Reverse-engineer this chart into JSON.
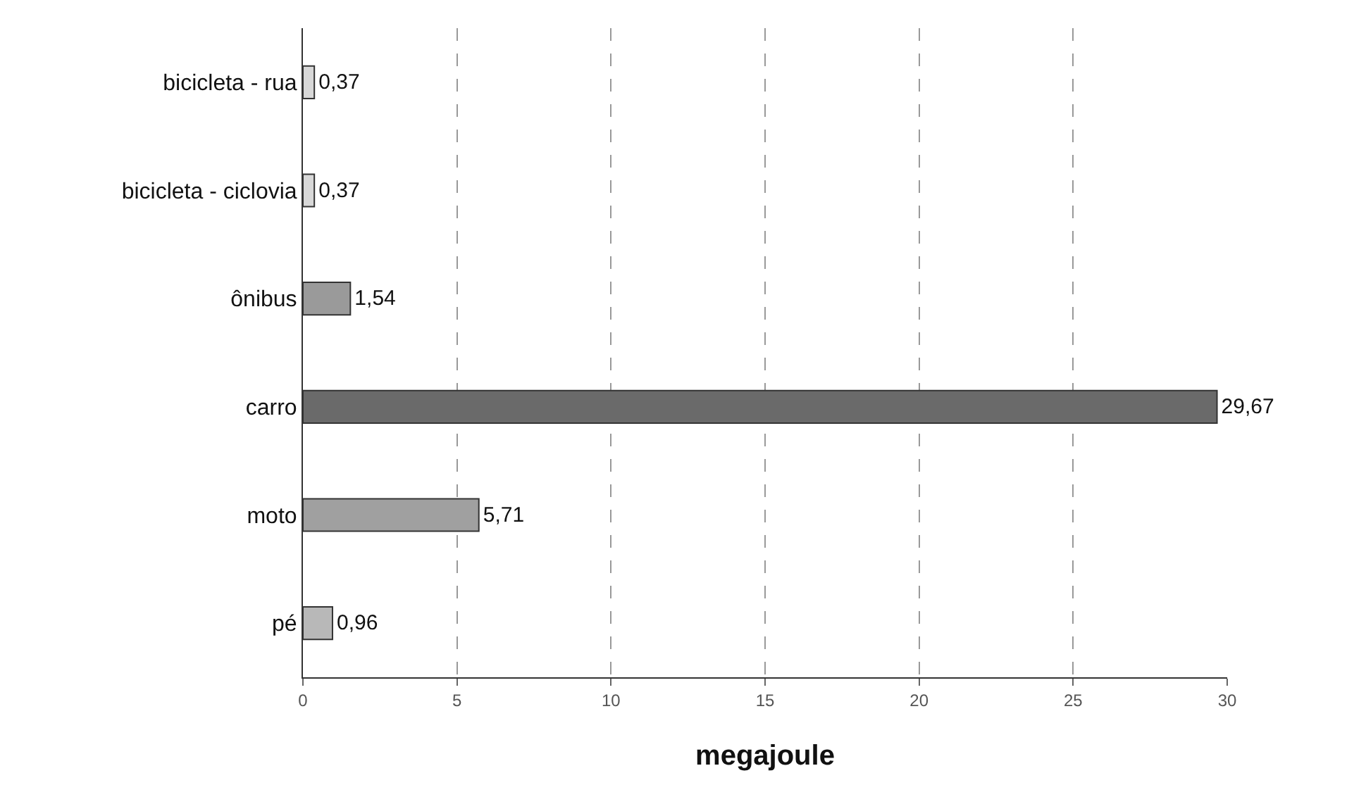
{
  "chart_data": {
    "type": "bar",
    "orientation": "horizontal",
    "categories": [
      "bicicleta - rua",
      "bicicleta - ciclovia",
      "ônibus",
      "carro",
      "moto",
      "pé"
    ],
    "values": [
      0.37,
      0.37,
      1.54,
      29.67,
      5.71,
      0.96
    ],
    "value_labels": [
      "0,37",
      "0,37",
      "1,54",
      "29,67",
      "5,71",
      "0,96"
    ],
    "colors": [
      "#d8d8d8",
      "#d8d8d8",
      "#9a9a9a",
      "#6a6a6a",
      "#a0a0a0",
      "#b8b8b8"
    ],
    "xlabel": "megajoule",
    "xlim": [
      0,
      30
    ],
    "xticks": [
      0,
      5,
      10,
      15,
      20,
      25,
      30
    ],
    "grid": "x"
  }
}
